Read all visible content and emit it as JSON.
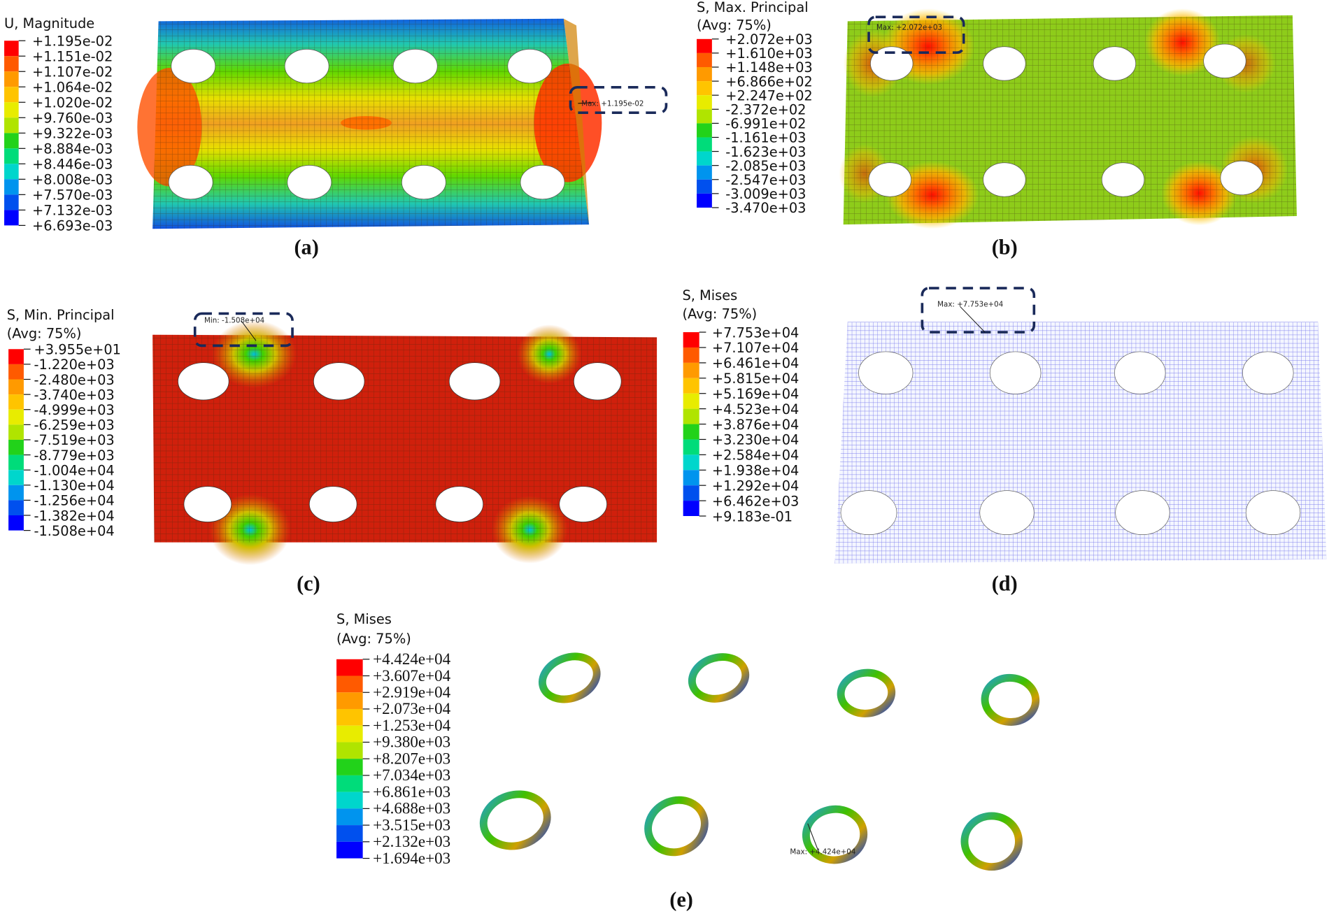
{
  "colors": {
    "scale": [
      "#ff0000",
      "#ff5a00",
      "#ff9a00",
      "#ffc400",
      "#e8ec00",
      "#b0e400",
      "#6adc00",
      "#22d21a",
      "#00dc7a",
      "#00d6cc",
      "#0094ee",
      "#0050ee",
      "#0000ff"
    ],
    "annotation_box": "#1a2a5a"
  },
  "panels": [
    {
      "id": "a",
      "label": "(a)",
      "legend": {
        "title": [
          "U, Magnitude"
        ],
        "values": [
          "+1.195e-02",
          "+1.151e-02",
          "+1.107e-02",
          "+1.064e-02",
          "+1.020e-02",
          "+9.760e-03",
          "+9.322e-03",
          "+8.884e-03",
          "+8.446e-03",
          "+8.008e-03",
          "+7.570e-03",
          "+7.132e-03",
          "+6.693e-03"
        ]
      },
      "annotation": "Max: +1.195e-02"
    },
    {
      "id": "b",
      "label": "(b)",
      "legend": {
        "title": [
          "S, Max. Principal",
          "(Avg: 75%)"
        ],
        "values": [
          "+2.072e+03",
          "+1.610e+03",
          "+1.148e+03",
          "+6.866e+02",
          "+2.247e+02",
          "-2.372e+02",
          "-6.991e+02",
          "-1.161e+03",
          "-1.623e+03",
          "-2.085e+03",
          "-2.547e+03",
          "-3.009e+03",
          "-3.470e+03"
        ]
      },
      "annotation": "Max: +2.072e+03"
    },
    {
      "id": "c",
      "label": "(c)",
      "legend": {
        "title": [
          "S, Min. Principal",
          "(Avg: 75%)"
        ],
        "values": [
          "+3.955e+01",
          "-1.220e+03",
          "-2.480e+03",
          "-3.740e+03",
          "-4.999e+03",
          "-6.259e+03",
          "-7.519e+03",
          "-8.779e+03",
          "-1.004e+04",
          "-1.130e+04",
          "-1.256e+04",
          "-1.382e+04",
          "-1.508e+04"
        ]
      },
      "annotation": "Min: -1.508e+04"
    },
    {
      "id": "d",
      "label": "(d)",
      "legend": {
        "title": [
          "S, Mises",
          "(Avg: 75%)"
        ],
        "values": [
          "+7.753e+04",
          "+7.107e+04",
          "+6.461e+04",
          "+5.815e+04",
          "+5.169e+04",
          "+4.523e+04",
          "+3.876e+04",
          "+3.230e+04",
          "+2.584e+04",
          "+1.938e+04",
          "+1.292e+04",
          "+6.462e+03",
          "+9.183e-01"
        ]
      },
      "annotation": "Max: +7.753e+04"
    },
    {
      "id": "e",
      "label": "(e)",
      "legend": {
        "title": [
          "S, Mises",
          "(Avg: 75%)"
        ],
        "values": [
          "+4.424e+04",
          "+3.607e+04",
          "+2.919e+04",
          "+2.073e+04",
          "+1.253e+04",
          "+9.380e+03",
          "+8.207e+03",
          "+7.034e+03",
          "+6.861e+03",
          "+4.688e+03",
          "+3.515e+03",
          "+2.132e+03",
          "+1.694e+03"
        ]
      },
      "annotation": "Max: +4.424e+04"
    }
  ]
}
